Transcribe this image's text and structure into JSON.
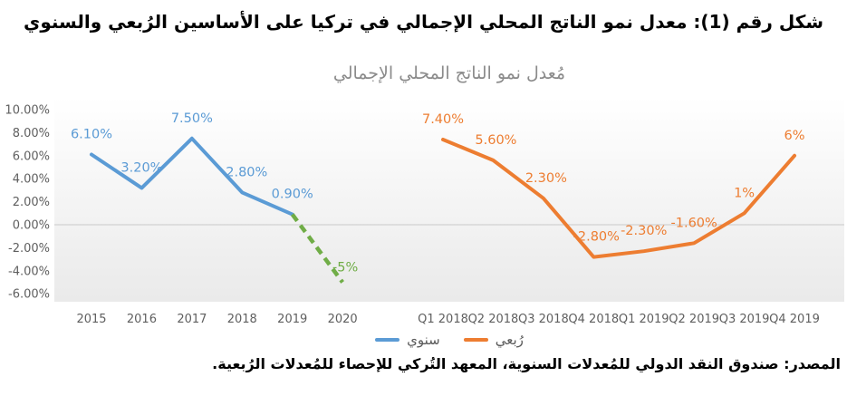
{
  "figure": {
    "title": "شكل رقم (1): معدل نمو الناتج المحلي الإجمالي في تركيا على الأساسين الرُبعي والسنوي",
    "source": "المصدر: صندوق النقد الدولي للمُعدلات السنوية، المعهد التُركي للإحصاء للمُعدلات الرُبعية."
  },
  "legend": {
    "items": [
      {
        "label": "سنوي",
        "color": "#5B9BD5"
      },
      {
        "label": "رُبعي",
        "color": "#ED7D31"
      }
    ]
  },
  "colors": {
    "annual_line": "#5B9BD5",
    "quarterly_line": "#ED7D31",
    "forecast_dashed_line": "#70AD47",
    "axis_text": "#5f5f5f",
    "zero_gridline": "#c9c9c9",
    "chart_title_text": "#8b8b8b",
    "plot_gradient_top": "#ffffff",
    "plot_gradient_bottom": "#eaeaea"
  },
  "chart_data": {
    "type": "line",
    "title": "مُعدل نمو الناتج المحلي الإجمالي",
    "categories": [
      "2015",
      "2016",
      "2017",
      "2018",
      "2019",
      "2020",
      "",
      "Q1 2018",
      "Q2 2018",
      "Q3 2018",
      "Q4 2018",
      "Q1 2019",
      "Q2 2019",
      "Q3 2019",
      "Q4 2019"
    ],
    "y_ticks": [
      "10.00%",
      "8.00%",
      "6.00%",
      "4.00%",
      "2.00%",
      "0.00%",
      "-2.00%",
      "-4.00%",
      "-6.00%"
    ],
    "ylim": [
      -6,
      10
    ],
    "y_tick_step": 2,
    "grid": "zero-line-only",
    "legend_position": "bottom",
    "series": [
      {
        "id": "annual",
        "name": "سنوي",
        "color": "#5B9BD5",
        "style": "solid",
        "in_legend": true,
        "points": [
          {
            "slot": 0,
            "value": 6.1,
            "label": "6.10%"
          },
          {
            "slot": 1,
            "value": 3.2,
            "label": "3.20%"
          },
          {
            "slot": 2,
            "value": 7.5,
            "label": "7.50%"
          },
          {
            "slot": 3,
            "value": 2.8,
            "label": "2.80%",
            "label_dx": 5
          },
          {
            "slot": 4,
            "value": 0.9,
            "label": "0.90%"
          }
        ]
      },
      {
        "id": "annual-forecast",
        "name": "",
        "color": "#70AD47",
        "style": "dashed",
        "in_legend": false,
        "points": [
          {
            "slot": 4,
            "value": 0.9,
            "label": ""
          },
          {
            "slot": 5,
            "value": -5,
            "label": "-5%",
            "label_dx": 3,
            "label_dy": -12
          }
        ]
      },
      {
        "id": "quarterly",
        "name": "رُبعي",
        "color": "#ED7D31",
        "style": "solid",
        "in_legend": true,
        "points": [
          {
            "slot": 7,
            "value": 7.4,
            "label": "7.40%"
          },
          {
            "slot": 8,
            "value": 5.6,
            "label": "5.60%",
            "label_dx": 3
          },
          {
            "slot": 9,
            "value": 2.3,
            "label": "2.30%",
            "label_dx": 3
          },
          {
            "slot": 10,
            "value": -2.8,
            "label": "-2.80%",
            "label_dx": 3
          },
          {
            "slot": 11,
            "value": -2.3,
            "label": "-2.30%"
          },
          {
            "slot": 12,
            "value": -1.6,
            "label": "-1.60%"
          },
          {
            "slot": 13,
            "value": 1,
            "label": "1%"
          },
          {
            "slot": 14,
            "value": 6,
            "label": "6%"
          }
        ]
      }
    ]
  }
}
